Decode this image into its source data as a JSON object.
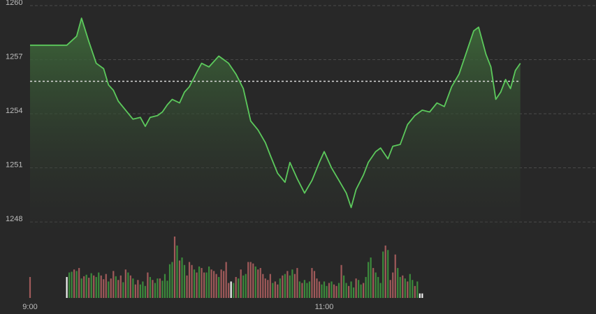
{
  "chart_data": {
    "type": "line",
    "reference_value": 1255.8,
    "ylim": [
      1247.5,
      1260
    ],
    "y_ticks": [
      {
        "value": 1260,
        "label": "1260"
      },
      {
        "value": 1257,
        "label": "1257"
      },
      {
        "value": 1254,
        "label": "1254"
      },
      {
        "value": 1251,
        "label": "1251"
      },
      {
        "value": 1248,
        "label": "1248"
      }
    ],
    "x_ticks": [
      {
        "time": "09:00",
        "label": "9:00"
      },
      {
        "time": "11:00",
        "label": "11:00"
      }
    ],
    "x_range": [
      "09:00",
      "13:30"
    ],
    "grid": true,
    "colors": {
      "background": "#282828",
      "line": "#5cc95c",
      "area_top": "#3e6b3a",
      "area_bottom": "#2a2a2a",
      "up_volume": "#3c8a3c",
      "down_volume": "#a05a5a",
      "reference_line": "#d9d9d9",
      "grid": "#4a4a4a",
      "tick_text": "#bdbdbd"
    },
    "series": [
      {
        "values": [
          [
            "09:00",
            1257.8
          ],
          [
            "09:15",
            1257.8
          ],
          [
            "09:19",
            1258.3
          ],
          [
            "09:21",
            1259.3
          ],
          [
            "09:24",
            1258.0
          ],
          [
            "09:27",
            1256.8
          ],
          [
            "09:30",
            1256.5
          ],
          [
            "09:32",
            1255.6
          ],
          [
            "09:34",
            1255.3
          ],
          [
            "09:36",
            1254.7
          ],
          [
            "09:39",
            1254.2
          ],
          [
            "09:42",
            1253.7
          ],
          [
            "09:45",
            1253.8
          ],
          [
            "09:47",
            1253.3
          ],
          [
            "09:49",
            1253.8
          ],
          [
            "09:52",
            1253.9
          ],
          [
            "09:54",
            1254.1
          ],
          [
            "09:56",
            1254.5
          ],
          [
            "09:58",
            1254.8
          ],
          [
            "10:01",
            1254.6
          ],
          [
            "10:03",
            1255.2
          ],
          [
            "10:05",
            1255.5
          ],
          [
            "10:08",
            1256.3
          ],
          [
            "10:10",
            1256.8
          ],
          [
            "10:13",
            1256.6
          ],
          [
            "10:15",
            1256.9
          ],
          [
            "10:17",
            1257.2
          ],
          [
            "10:19",
            1257.0
          ],
          [
            "10:21",
            1256.8
          ],
          [
            "10:24",
            1256.2
          ],
          [
            "10:27",
            1255.4
          ],
          [
            "10:30",
            1253.6
          ],
          [
            "10:33",
            1253.1
          ],
          [
            "10:36",
            1252.4
          ],
          [
            "10:38",
            1251.7
          ],
          [
            "10:41",
            1250.7
          ],
          [
            "10:44",
            1250.2
          ],
          [
            "10:46",
            1251.3
          ],
          [
            "10:49",
            1250.4
          ],
          [
            "10:52",
            1249.6
          ],
          [
            "10:55",
            1250.3
          ],
          [
            "10:58",
            1251.3
          ],
          [
            "11:00",
            1251.9
          ],
          [
            "11:03",
            1251.0
          ],
          [
            "11:06",
            1250.3
          ],
          [
            "11:09",
            1249.6
          ],
          [
            "11:11",
            1248.8
          ],
          [
            "11:13",
            1249.8
          ],
          [
            "11:16",
            1250.6
          ],
          [
            "11:18",
            1251.3
          ],
          [
            "11:21",
            1251.9
          ],
          [
            "11:23",
            1252.1
          ],
          [
            "11:26",
            1251.5
          ],
          [
            "11:28",
            1252.2
          ],
          [
            "11:31",
            1252.3
          ],
          [
            "11:34",
            1253.4
          ],
          [
            "11:37",
            1253.9
          ],
          [
            "11:40",
            1254.2
          ],
          [
            "11:43",
            1254.1
          ],
          [
            "11:46",
            1254.6
          ],
          [
            "11:49",
            1254.4
          ],
          [
            "11:52",
            1255.5
          ],
          [
            "11:55",
            1256.2
          ],
          [
            "11:58",
            1257.4
          ],
          [
            "12:01",
            1258.6
          ],
          [
            "12:03",
            1258.8
          ],
          [
            "12:06",
            1257.3
          ],
          [
            "12:08",
            1256.6
          ],
          [
            "12:10",
            1254.8
          ],
          [
            "12:12",
            1255.2
          ],
          [
            "12:14",
            1255.9
          ],
          [
            "12:16",
            1255.4
          ],
          [
            "12:18",
            1256.4
          ],
          [
            "12:20",
            1256.8
          ]
        ]
      }
    ],
    "volume": [
      {
        "time": "09:00",
        "value": 28,
        "dir": "down"
      },
      {
        "time": "09:15",
        "value": 28,
        "dir": "open"
      },
      {
        "time": "09:16",
        "value": 34,
        "dir": "up"
      },
      {
        "time": "09:17",
        "value": 35,
        "dir": "up"
      },
      {
        "time": "09:18",
        "value": 38,
        "dir": "down"
      },
      {
        "time": "09:19",
        "value": 36,
        "dir": "up"
      },
      {
        "time": "09:20",
        "value": 40,
        "dir": "down"
      },
      {
        "time": "09:21",
        "value": 26,
        "dir": "up"
      },
      {
        "time": "09:22",
        "value": 29,
        "dir": "down"
      },
      {
        "time": "09:23",
        "value": 31,
        "dir": "up"
      },
      {
        "time": "09:24",
        "value": 27,
        "dir": "down"
      },
      {
        "time": "09:25",
        "value": 33,
        "dir": "up"
      },
      {
        "time": "09:26",
        "value": 30,
        "dir": "down"
      },
      {
        "time": "09:27",
        "value": 28,
        "dir": "up"
      },
      {
        "time": "09:28",
        "value": 34,
        "dir": "up"
      },
      {
        "time": "09:29",
        "value": 30,
        "dir": "down"
      },
      {
        "time": "09:30",
        "value": 25,
        "dir": "down"
      },
      {
        "time": "09:31",
        "value": 32,
        "dir": "down"
      },
      {
        "time": "09:32",
        "value": 22,
        "dir": "up"
      },
      {
        "time": "09:33",
        "value": 26,
        "dir": "down"
      },
      {
        "time": "09:34",
        "value": 36,
        "dir": "down"
      },
      {
        "time": "09:35",
        "value": 29,
        "dir": "up"
      },
      {
        "time": "09:36",
        "value": 24,
        "dir": "down"
      },
      {
        "time": "09:37",
        "value": 30,
        "dir": "down"
      },
      {
        "time": "09:38",
        "value": 21,
        "dir": "up"
      },
      {
        "time": "09:39",
        "value": 38,
        "dir": "down"
      },
      {
        "time": "09:40",
        "value": 34,
        "dir": "up"
      },
      {
        "time": "09:41",
        "value": 30,
        "dir": "down"
      },
      {
        "time": "09:42",
        "value": 26,
        "dir": "up"
      },
      {
        "time": "09:43",
        "value": 18,
        "dir": "down"
      },
      {
        "time": "09:44",
        "value": 24,
        "dir": "down"
      },
      {
        "time": "09:45",
        "value": 18,
        "dir": "up"
      },
      {
        "time": "09:46",
        "value": 22,
        "dir": "up"
      },
      {
        "time": "09:47",
        "value": 16,
        "dir": "up"
      },
      {
        "time": "09:48",
        "value": 34,
        "dir": "down"
      },
      {
        "time": "09:49",
        "value": 28,
        "dir": "up"
      },
      {
        "time": "09:50",
        "value": 24,
        "dir": "down"
      },
      {
        "time": "09:51",
        "value": 20,
        "dir": "up"
      },
      {
        "time": "09:52",
        "value": 26,
        "dir": "up"
      },
      {
        "time": "09:53",
        "value": 26,
        "dir": "down"
      },
      {
        "time": "09:54",
        "value": 23,
        "dir": "up"
      },
      {
        "time": "09:55",
        "value": 32,
        "dir": "up"
      },
      {
        "time": "09:56",
        "value": 23,
        "dir": "up"
      },
      {
        "time": "09:57",
        "value": 45,
        "dir": "up"
      },
      {
        "time": "09:58",
        "value": 48,
        "dir": "up"
      },
      {
        "time": "09:59",
        "value": 82,
        "dir": "down"
      },
      {
        "time": "10:00",
        "value": 70,
        "dir": "up"
      },
      {
        "time": "10:01",
        "value": 50,
        "dir": "down"
      },
      {
        "time": "10:02",
        "value": 54,
        "dir": "up"
      },
      {
        "time": "10:03",
        "value": 44,
        "dir": "up"
      },
      {
        "time": "10:04",
        "value": 30,
        "dir": "down"
      },
      {
        "time": "10:05",
        "value": 48,
        "dir": "down"
      },
      {
        "time": "10:06",
        "value": 44,
        "dir": "down"
      },
      {
        "time": "10:07",
        "value": 38,
        "dir": "up"
      },
      {
        "time": "10:08",
        "value": 34,
        "dir": "down"
      },
      {
        "time": "10:09",
        "value": 42,
        "dir": "up"
      },
      {
        "time": "10:10",
        "value": 40,
        "dir": "down"
      },
      {
        "time": "10:11",
        "value": 34,
        "dir": "down"
      },
      {
        "time": "10:12",
        "value": 34,
        "dir": "up"
      },
      {
        "time": "10:13",
        "value": 42,
        "dir": "up"
      },
      {
        "time": "10:14",
        "value": 38,
        "dir": "down"
      },
      {
        "time": "10:15",
        "value": 36,
        "dir": "down"
      },
      {
        "time": "10:16",
        "value": 32,
        "dir": "down"
      },
      {
        "time": "10:17",
        "value": 28,
        "dir": "up"
      },
      {
        "time": "10:18",
        "value": 38,
        "dir": "down"
      },
      {
        "time": "10:19",
        "value": 36,
        "dir": "down"
      },
      {
        "time": "10:20",
        "value": 48,
        "dir": "down"
      },
      {
        "time": "10:21",
        "value": 20,
        "dir": "down"
      },
      {
        "time": "10:22",
        "value": 22,
        "dir": "open"
      },
      {
        "time": "10:23",
        "value": 20,
        "dir": "up"
      },
      {
        "time": "10:24",
        "value": 28,
        "dir": "down"
      },
      {
        "time": "10:25",
        "value": 26,
        "dir": "up"
      },
      {
        "time": "10:26",
        "value": 38,
        "dir": "down"
      },
      {
        "time": "10:27",
        "value": 30,
        "dir": "up"
      },
      {
        "time": "10:28",
        "value": 32,
        "dir": "up"
      },
      {
        "time": "10:29",
        "value": 48,
        "dir": "down"
      },
      {
        "time": "10:30",
        "value": 48,
        "dir": "down"
      },
      {
        "time": "10:31",
        "value": 46,
        "dir": "down"
      },
      {
        "time": "10:32",
        "value": 42,
        "dir": "up"
      },
      {
        "time": "10:33",
        "value": 38,
        "dir": "down"
      },
      {
        "time": "10:34",
        "value": 40,
        "dir": "down"
      },
      {
        "time": "10:35",
        "value": 32,
        "dir": "down"
      },
      {
        "time": "10:36",
        "value": 26,
        "dir": "down"
      },
      {
        "time": "10:37",
        "value": 24,
        "dir": "down"
      },
      {
        "time": "10:38",
        "value": 32,
        "dir": "down"
      },
      {
        "time": "10:39",
        "value": 20,
        "dir": "up"
      },
      {
        "time": "10:40",
        "value": 22,
        "dir": "down"
      },
      {
        "time": "10:41",
        "value": 18,
        "dir": "down"
      },
      {
        "time": "10:42",
        "value": 26,
        "dir": "up"
      },
      {
        "time": "10:43",
        "value": 30,
        "dir": "down"
      },
      {
        "time": "10:44",
        "value": 32,
        "dir": "up"
      },
      {
        "time": "10:45",
        "value": 36,
        "dir": "down"
      },
      {
        "time": "10:46",
        "value": 30,
        "dir": "up"
      },
      {
        "time": "10:47",
        "value": 38,
        "dir": "up"
      },
      {
        "time": "10:48",
        "value": 32,
        "dir": "down"
      },
      {
        "time": "10:49",
        "value": 40,
        "dir": "down"
      },
      {
        "time": "10:50",
        "value": 22,
        "dir": "up"
      },
      {
        "time": "10:51",
        "value": 20,
        "dir": "down"
      },
      {
        "time": "10:52",
        "value": 24,
        "dir": "up"
      },
      {
        "time": "10:53",
        "value": 20,
        "dir": "up"
      },
      {
        "time": "10:54",
        "value": 22,
        "dir": "up"
      },
      {
        "time": "10:55",
        "value": 40,
        "dir": "down"
      },
      {
        "time": "10:56",
        "value": 36,
        "dir": "down"
      },
      {
        "time": "10:57",
        "value": 26,
        "dir": "down"
      },
      {
        "time": "10:58",
        "value": 22,
        "dir": "down"
      },
      {
        "time": "10:59",
        "value": 18,
        "dir": "up"
      },
      {
        "time": "11:00",
        "value": 22,
        "dir": "up"
      },
      {
        "time": "11:01",
        "value": 16,
        "dir": "up"
      },
      {
        "time": "11:02",
        "value": 20,
        "dir": "down"
      },
      {
        "time": "11:03",
        "value": 22,
        "dir": "up"
      },
      {
        "time": "11:04",
        "value": 18,
        "dir": "down"
      },
      {
        "time": "11:05",
        "value": 16,
        "dir": "down"
      },
      {
        "time": "11:06",
        "value": 20,
        "dir": "up"
      },
      {
        "time": "11:07",
        "value": 44,
        "dir": "down"
      },
      {
        "time": "11:08",
        "value": 30,
        "dir": "up"
      },
      {
        "time": "11:09",
        "value": 20,
        "dir": "up"
      },
      {
        "time": "11:10",
        "value": 16,
        "dir": "down"
      },
      {
        "time": "11:11",
        "value": 22,
        "dir": "up"
      },
      {
        "time": "11:12",
        "value": 14,
        "dir": "up"
      },
      {
        "time": "11:13",
        "value": 26,
        "dir": "down"
      },
      {
        "time": "11:14",
        "value": 24,
        "dir": "up"
      },
      {
        "time": "11:15",
        "value": 18,
        "dir": "up"
      },
      {
        "time": "11:16",
        "value": 20,
        "dir": "down"
      },
      {
        "time": "11:17",
        "value": 28,
        "dir": "up"
      },
      {
        "time": "11:18",
        "value": 48,
        "dir": "up"
      },
      {
        "time": "11:19",
        "value": 54,
        "dir": "up"
      },
      {
        "time": "11:20",
        "value": 40,
        "dir": "down"
      },
      {
        "time": "11:21",
        "value": 34,
        "dir": "up"
      },
      {
        "time": "11:22",
        "value": 28,
        "dir": "up"
      },
      {
        "time": "11:23",
        "value": 20,
        "dir": "up"
      },
      {
        "time": "11:24",
        "value": 62,
        "dir": "up"
      },
      {
        "time": "11:25",
        "value": 70,
        "dir": "down"
      },
      {
        "time": "11:26",
        "value": 64,
        "dir": "up"
      },
      {
        "time": "11:27",
        "value": 24,
        "dir": "down"
      },
      {
        "time": "11:28",
        "value": 34,
        "dir": "down"
      },
      {
        "time": "11:29",
        "value": 58,
        "dir": "down"
      },
      {
        "time": "11:30",
        "value": 40,
        "dir": "up"
      },
      {
        "time": "11:31",
        "value": 28,
        "dir": "up"
      },
      {
        "time": "11:32",
        "value": 30,
        "dir": "down"
      },
      {
        "time": "11:33",
        "value": 26,
        "dir": "up"
      },
      {
        "time": "11:34",
        "value": 22,
        "dir": "down"
      },
      {
        "time": "11:35",
        "value": 32,
        "dir": "up"
      },
      {
        "time": "11:36",
        "value": 24,
        "dir": "up"
      },
      {
        "time": "11:37",
        "value": 16,
        "dir": "down"
      },
      {
        "time": "11:38",
        "value": 22,
        "dir": "up"
      },
      {
        "time": "11:39",
        "value": 6,
        "dir": "open"
      },
      {
        "time": "11:40",
        "value": 6,
        "dir": "open"
      }
    ]
  }
}
